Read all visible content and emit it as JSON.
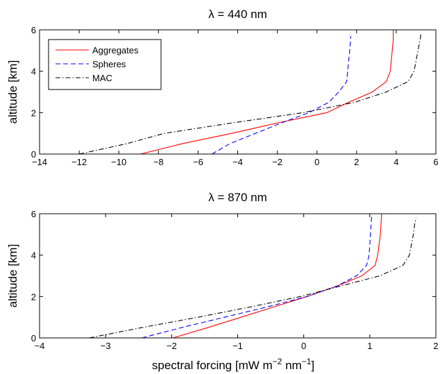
{
  "xlabel_prefix": "spectral forcing [mW m",
  "xlabel_exp1": "−2",
  "xlabel_mid": " nm",
  "xlabel_exp2": "−1",
  "xlabel_suffix": "]",
  "chart_data": [
    {
      "type": "line",
      "title": "λ = 440 nm",
      "xlabel": "",
      "ylabel": "altitude [km]",
      "xlim": [
        -14,
        6
      ],
      "ylim": [
        0,
        6
      ],
      "xticks": [
        -14,
        -12,
        -10,
        -8,
        -6,
        -4,
        -2,
        0,
        2,
        4,
        6
      ],
      "xtick_labels": [
        "−14",
        "−12",
        "−10",
        "−8",
        "−6",
        "−4",
        "−2",
        "0",
        "2",
        "4",
        "6"
      ],
      "yticks": [
        0,
        2,
        4,
        6
      ],
      "ytick_labels": [
        "0",
        "2",
        "4",
        "6"
      ],
      "grid": false,
      "legend": "top-left",
      "series": [
        {
          "name": "Aggregates",
          "color": "#ff0000",
          "style": "solid",
          "points": [
            [
              -8.9,
              0
            ],
            [
              -6.8,
              0.5
            ],
            [
              -4.3,
              1.0
            ],
            [
              -2.0,
              1.5
            ],
            [
              0.5,
              2.0
            ],
            [
              1.6,
              2.5
            ],
            [
              2.8,
              3.0
            ],
            [
              3.5,
              3.5
            ],
            [
              3.7,
              4.0
            ],
            [
              3.75,
              4.5
            ],
            [
              3.8,
              5.0
            ],
            [
              3.85,
              5.5
            ],
            [
              3.85,
              6.0
            ]
          ]
        },
        {
          "name": "Spheres",
          "color": "#0000ff",
          "style": "dashed",
          "points": [
            [
              -5.3,
              0
            ],
            [
              -4.4,
              0.5
            ],
            [
              -3.1,
              1.0
            ],
            [
              -1.8,
              1.5
            ],
            [
              -0.4,
              2.0
            ],
            [
              0.6,
              2.5
            ],
            [
              1.1,
              3.0
            ],
            [
              1.5,
              3.5
            ],
            [
              1.55,
              4.0
            ],
            [
              1.6,
              4.5
            ],
            [
              1.65,
              5.0
            ],
            [
              1.7,
              5.5
            ],
            [
              1.7,
              5.7
            ]
          ]
        },
        {
          "name": "MAC",
          "color": "#000000",
          "style": "dashdot",
          "points": [
            [
              -12.0,
              0
            ],
            [
              -9.6,
              0.5
            ],
            [
              -7.7,
              1.0
            ],
            [
              -4.3,
              1.5
            ],
            [
              -0.7,
              2.0
            ],
            [
              1.9,
              2.5
            ],
            [
              3.5,
              3.0
            ],
            [
              4.6,
              3.5
            ],
            [
              4.9,
              4.0
            ],
            [
              5.0,
              4.5
            ],
            [
              5.1,
              5.0
            ],
            [
              5.2,
              5.5
            ],
            [
              5.25,
              5.8
            ]
          ]
        }
      ]
    },
    {
      "type": "line",
      "title": "λ = 870 nm",
      "xlabel": "",
      "ylabel": "altitude [km]",
      "xlim": [
        -4,
        2
      ],
      "ylim": [
        0,
        6
      ],
      "xticks": [
        -4,
        -3,
        -2,
        -1,
        0,
        1,
        2
      ],
      "xtick_labels": [
        "−4",
        "−3",
        "−2",
        "−1",
        "0",
        "1",
        "2"
      ],
      "yticks": [
        0,
        2,
        4,
        6
      ],
      "ytick_labels": [
        "0",
        "2",
        "4",
        "6"
      ],
      "grid": false,
      "series": [
        {
          "name": "Aggregates",
          "color": "#ff0000",
          "style": "solid",
          "points": [
            [
              -1.98,
              0
            ],
            [
              -1.45,
              0.5
            ],
            [
              -0.95,
              1.0
            ],
            [
              -0.45,
              1.5
            ],
            [
              0.05,
              2.0
            ],
            [
              0.5,
              2.5
            ],
            [
              0.88,
              3.0
            ],
            [
              1.08,
              3.5
            ],
            [
              1.12,
              4.0
            ],
            [
              1.14,
              4.5
            ],
            [
              1.16,
              5.0
            ],
            [
              1.17,
              5.5
            ],
            [
              1.18,
              6.0
            ]
          ]
        },
        {
          "name": "Spheres",
          "color": "#0000ff",
          "style": "dashed",
          "points": [
            [
              -2.45,
              0
            ],
            [
              -1.85,
              0.5
            ],
            [
              -1.2,
              1.0
            ],
            [
              -0.55,
              1.5
            ],
            [
              0.05,
              2.0
            ],
            [
              0.5,
              2.5
            ],
            [
              0.8,
              3.0
            ],
            [
              0.95,
              3.5
            ],
            [
              0.99,
              4.0
            ],
            [
              1.0,
              4.5
            ],
            [
              1.01,
              5.0
            ],
            [
              1.02,
              5.5
            ],
            [
              1.03,
              6.0
            ]
          ]
        },
        {
          "name": "MAC",
          "color": "#000000",
          "style": "dashdot",
          "points": [
            [
              -3.25,
              0
            ],
            [
              -2.45,
              0.5
            ],
            [
              -1.6,
              1.0
            ],
            [
              -0.8,
              1.5
            ],
            [
              -0.05,
              2.0
            ],
            [
              0.55,
              2.5
            ],
            [
              1.15,
              3.0
            ],
            [
              1.5,
              3.5
            ],
            [
              1.6,
              4.0
            ],
            [
              1.63,
              4.5
            ],
            [
              1.66,
              5.0
            ],
            [
              1.68,
              5.5
            ],
            [
              1.7,
              5.8
            ]
          ]
        }
      ]
    }
  ]
}
